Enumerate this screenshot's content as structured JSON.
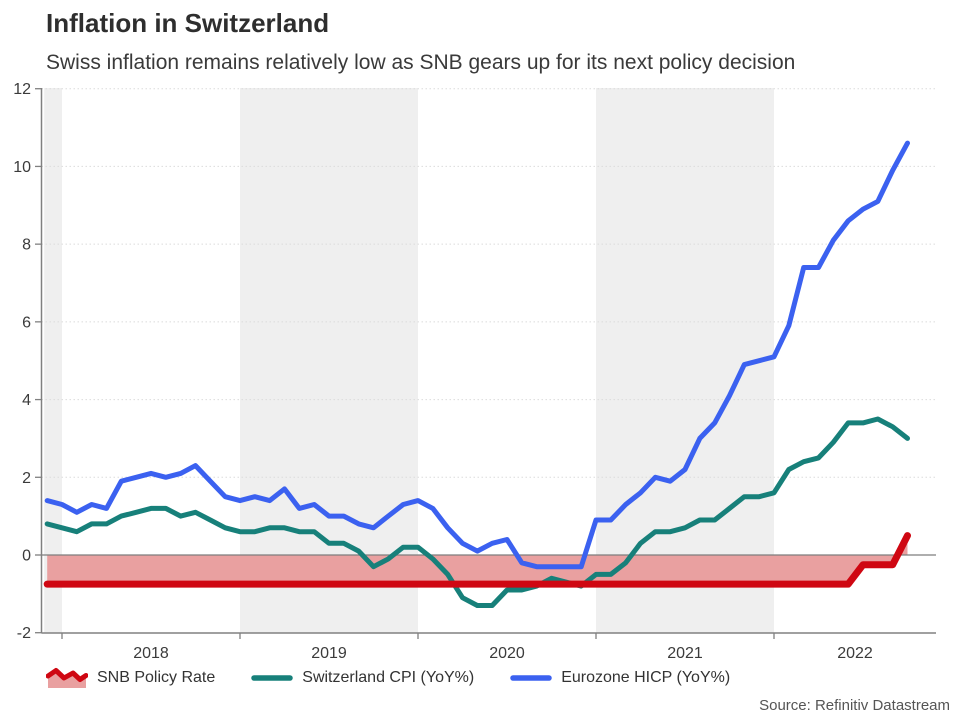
{
  "header": {
    "title": "Inflation in Switzerland",
    "subtitle": "Swiss inflation remains relatively low as SNB gears up for its next policy decision"
  },
  "source": "Source: Refinitiv Datastream",
  "colors": {
    "policy_red": "#CF0712",
    "policy_fill": "#E9A0A0",
    "cpi_teal": "#17807A",
    "hicp_blue": "#3B61F0",
    "band_gray": "#EFEFEF",
    "gridline": "#DBDBDB",
    "zero_line": "#7E7E7E",
    "axis": "#808080",
    "text_dark": "#3B3B3B",
    "source_gray": "#555555"
  },
  "legend": [
    {
      "label": "SNB Policy Rate",
      "color": "#CF0712",
      "fill": "#E9A0A0",
      "type": "area"
    },
    {
      "label": "Switzerland CPI (YoY%)",
      "color": "#17807A",
      "type": "line"
    },
    {
      "label": "Eurozone HICP (YoY%)",
      "color": "#3B61F0",
      "type": "line"
    }
  ],
  "chart_data": {
    "type": "line",
    "title": "Inflation in Switzerland",
    "subtitle": "Swiss inflation remains relatively low as SNB gears up for its next policy decision",
    "xlabel": "",
    "ylabel": "",
    "ylim": [
      -2,
      12
    ],
    "y_ticks": [
      -2,
      0,
      2,
      4,
      6,
      8,
      10,
      12
    ],
    "x_ticks": [
      2018,
      2019,
      2020,
      2021,
      2022
    ],
    "x_tick_labels": [
      "2018",
      "2019",
      "2020",
      "2021",
      "2022"
    ],
    "grid": "dotted horizontal",
    "legend_position": "bottom",
    "shaded_year_bands": [
      [
        2017.9,
        2018
      ],
      [
        2019,
        2020
      ],
      [
        2021,
        2022
      ]
    ],
    "months": [
      "2017-12",
      "2018-01",
      "2018-02",
      "2018-03",
      "2018-04",
      "2018-05",
      "2018-06",
      "2018-07",
      "2018-08",
      "2018-09",
      "2018-10",
      "2018-11",
      "2018-12",
      "2019-01",
      "2019-02",
      "2019-03",
      "2019-04",
      "2019-05",
      "2019-06",
      "2019-07",
      "2019-08",
      "2019-09",
      "2019-10",
      "2019-11",
      "2019-12",
      "2020-01",
      "2020-02",
      "2020-03",
      "2020-04",
      "2020-05",
      "2020-06",
      "2020-07",
      "2020-08",
      "2020-09",
      "2020-10",
      "2020-11",
      "2020-12",
      "2021-01",
      "2021-02",
      "2021-03",
      "2021-04",
      "2021-05",
      "2021-06",
      "2021-07",
      "2021-08",
      "2021-09",
      "2021-10",
      "2021-11",
      "2021-12",
      "2022-01",
      "2022-02",
      "2022-03",
      "2022-04",
      "2022-05",
      "2022-06",
      "2022-07",
      "2022-08",
      "2022-09",
      "2022-10"
    ],
    "series": [
      {
        "name": "SNB Policy Rate",
        "style": "area_to_zero",
        "values": [
          -0.75,
          -0.75,
          -0.75,
          -0.75,
          -0.75,
          -0.75,
          -0.75,
          -0.75,
          -0.75,
          -0.75,
          -0.75,
          -0.75,
          -0.75,
          -0.75,
          -0.75,
          -0.75,
          -0.75,
          -0.75,
          -0.75,
          -0.75,
          -0.75,
          -0.75,
          -0.75,
          -0.75,
          -0.75,
          -0.75,
          -0.75,
          -0.75,
          -0.75,
          -0.75,
          -0.75,
          -0.75,
          -0.75,
          -0.75,
          -0.75,
          -0.75,
          -0.75,
          -0.75,
          -0.75,
          -0.75,
          -0.75,
          -0.75,
          -0.75,
          -0.75,
          -0.75,
          -0.75,
          -0.75,
          -0.75,
          -0.75,
          -0.75,
          -0.75,
          -0.75,
          -0.75,
          -0.75,
          -0.75,
          -0.25,
          -0.25,
          -0.25,
          0.5
        ]
      },
      {
        "name": "Switzerland CPI (YoY%)",
        "style": "line",
        "values": [
          0.8,
          0.7,
          0.6,
          0.8,
          0.8,
          1.0,
          1.1,
          1.2,
          1.2,
          1.0,
          1.1,
          0.9,
          0.7,
          0.6,
          0.6,
          0.7,
          0.7,
          0.6,
          0.6,
          0.3,
          0.3,
          0.1,
          -0.3,
          -0.1,
          0.2,
          0.2,
          -0.1,
          -0.5,
          -1.1,
          -1.3,
          -1.3,
          -0.9,
          -0.9,
          -0.8,
          -0.6,
          -0.7,
          -0.8,
          -0.5,
          -0.5,
          -0.2,
          0.3,
          0.6,
          0.6,
          0.7,
          0.9,
          0.9,
          1.2,
          1.5,
          1.5,
          1.6,
          2.2,
          2.4,
          2.5,
          2.9,
          3.4,
          3.4,
          3.5,
          3.3,
          3.0
        ]
      },
      {
        "name": "Eurozone HICP (YoY%)",
        "style": "line",
        "values": [
          1.4,
          1.3,
          1.1,
          1.3,
          1.2,
          1.9,
          2.0,
          2.1,
          2.0,
          2.1,
          2.3,
          1.9,
          1.5,
          1.4,
          1.5,
          1.4,
          1.7,
          1.2,
          1.3,
          1.0,
          1.0,
          0.8,
          0.7,
          1.0,
          1.3,
          1.4,
          1.2,
          0.7,
          0.3,
          0.1,
          0.3,
          0.4,
          -0.2,
          -0.3,
          -0.3,
          -0.3,
          -0.3,
          0.9,
          0.9,
          1.3,
          1.6,
          2.0,
          1.9,
          2.2,
          3.0,
          3.4,
          4.1,
          4.9,
          5.0,
          5.1,
          5.9,
          7.4,
          7.4,
          8.1,
          8.6,
          8.9,
          9.1,
          9.9,
          10.6
        ]
      }
    ]
  }
}
